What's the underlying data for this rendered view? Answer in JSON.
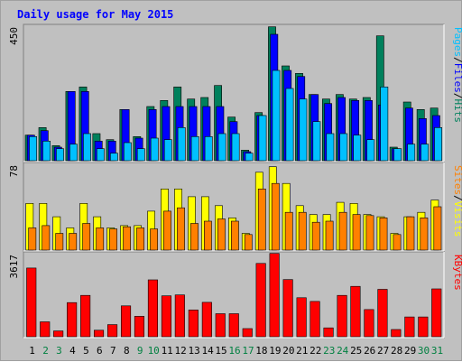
{
  "title": "Daily usage for May 2015",
  "colors": {
    "hits": "#00805c",
    "files": "#0000ff",
    "pages": "#00c0ff",
    "visits": "#ffff00",
    "sites": "#ff8000",
    "kbytes": "#ff0000",
    "weekday_label": "#000000",
    "weekend_label": "#008040"
  },
  "chart_data": [
    {
      "type": "bar",
      "ymax_label": "450",
      "ylim": [
        0,
        450
      ],
      "side_labels": [
        {
          "text": "Pages",
          "color": "#00c0ff"
        },
        {
          "text": "/",
          "color": "#000000"
        },
        {
          "text": "Files",
          "color": "#0000ff"
        },
        {
          "text": "/",
          "color": "#000000"
        },
        {
          "text": "Hits",
          "color": "#00805c"
        }
      ],
      "categories": [
        "1",
        "2",
        "3",
        "4",
        "5",
        "6",
        "7",
        "8",
        "9",
        "10",
        "11",
        "12",
        "13",
        "14",
        "15",
        "16",
        "17",
        "18",
        "19",
        "20",
        "21",
        "22",
        "23",
        "24",
        "25",
        "26",
        "27",
        "28",
        "29",
        "30",
        "31"
      ],
      "series": [
        {
          "name": "Hits",
          "values": [
            85,
            110,
            50,
            230,
            245,
            90,
            70,
            170,
            80,
            180,
            200,
            245,
            205,
            210,
            250,
            145,
            35,
            160,
            445,
            315,
            290,
            220,
            205,
            220,
            205,
            210,
            415,
            45,
            195,
            170,
            175
          ]
        },
        {
          "name": "Files",
          "values": [
            85,
            100,
            45,
            230,
            230,
            65,
            65,
            170,
            75,
            170,
            180,
            180,
            180,
            180,
            180,
            130,
            30,
            150,
            420,
            300,
            280,
            220,
            190,
            210,
            200,
            200,
            185,
            40,
            175,
            140,
            150
          ]
        },
        {
          "name": "Pages",
          "values": [
            80,
            65,
            40,
            55,
            90,
            40,
            25,
            60,
            40,
            75,
            70,
            110,
            80,
            80,
            90,
            90,
            25,
            150,
            300,
            240,
            205,
            130,
            90,
            90,
            85,
            70,
            245,
            40,
            55,
            55,
            110
          ]
        }
      ]
    },
    {
      "type": "bar",
      "ymax_label": "78",
      "ylim": [
        0,
        78
      ],
      "side_labels": [
        {
          "text": "Sites",
          "color": "#ff8000"
        },
        {
          "text": "/",
          "color": "#000000"
        },
        {
          "text": "Visits",
          "color": "#ffff00"
        }
      ],
      "categories": [
        "1",
        "2",
        "3",
        "4",
        "5",
        "6",
        "7",
        "8",
        "9",
        "10",
        "11",
        "12",
        "13",
        "14",
        "15",
        "16",
        "17",
        "18",
        "19",
        "20",
        "21",
        "22",
        "23",
        "24",
        "25",
        "26",
        "27",
        "28",
        "29",
        "30",
        "31"
      ],
      "series": [
        {
          "name": "Visits",
          "values": [
            42,
            42,
            30,
            20,
            42,
            30,
            20,
            22,
            22,
            35,
            55,
            55,
            48,
            48,
            40,
            29,
            15,
            70,
            75,
            60,
            40,
            32,
            32,
            43,
            42,
            32,
            30,
            15,
            30,
            34,
            45
          ]
        },
        {
          "name": "Sites",
          "values": [
            20,
            22,
            15,
            15,
            24,
            20,
            19,
            21,
            20,
            19,
            35,
            38,
            24,
            26,
            28,
            26,
            14,
            55,
            60,
            34,
            34,
            25,
            26,
            34,
            32,
            31,
            29,
            14,
            30,
            29,
            39
          ]
        }
      ]
    },
    {
      "type": "bar",
      "ymax_label": "3617",
      "ylim": [
        0,
        3617
      ],
      "side_labels": [
        {
          "text": "KBytes",
          "color": "#ff0000"
        }
      ],
      "categories": [
        "1",
        "2",
        "3",
        "4",
        "5",
        "6",
        "7",
        "8",
        "9",
        "10",
        "11",
        "12",
        "13",
        "14",
        "15",
        "16",
        "17",
        "18",
        "19",
        "20",
        "21",
        "22",
        "23",
        "24",
        "25",
        "26",
        "27",
        "28",
        "29",
        "30",
        "31"
      ],
      "series": [
        {
          "name": "KBytes",
          "values": [
            2960,
            640,
            250,
            1470,
            1780,
            280,
            520,
            1330,
            880,
            2450,
            1760,
            1800,
            1150,
            1480,
            990,
            990,
            350,
            3160,
            3590,
            2460,
            1680,
            1520,
            380,
            1780,
            2170,
            1170,
            2040,
            310,
            850,
            850,
            2060
          ]
        }
      ],
      "x_labels": [
        {
          "text": "1",
          "weekend": false
        },
        {
          "text": "2",
          "weekend": true
        },
        {
          "text": "3",
          "weekend": true
        },
        {
          "text": "4",
          "weekend": false
        },
        {
          "text": "5",
          "weekend": false
        },
        {
          "text": "6",
          "weekend": false
        },
        {
          "text": "7",
          "weekend": false
        },
        {
          "text": "8",
          "weekend": false
        },
        {
          "text": "9",
          "weekend": true
        },
        {
          "text": "10",
          "weekend": true
        },
        {
          "text": "11",
          "weekend": false
        },
        {
          "text": "12",
          "weekend": false
        },
        {
          "text": "13",
          "weekend": false
        },
        {
          "text": "14",
          "weekend": false
        },
        {
          "text": "15",
          "weekend": false
        },
        {
          "text": "16",
          "weekend": true
        },
        {
          "text": "17",
          "weekend": true
        },
        {
          "text": "18",
          "weekend": false
        },
        {
          "text": "19",
          "weekend": false
        },
        {
          "text": "20",
          "weekend": false
        },
        {
          "text": "21",
          "weekend": false
        },
        {
          "text": "22",
          "weekend": false
        },
        {
          "text": "23",
          "weekend": true
        },
        {
          "text": "24",
          "weekend": true
        },
        {
          "text": "25",
          "weekend": false
        },
        {
          "text": "26",
          "weekend": false
        },
        {
          "text": "27",
          "weekend": false
        },
        {
          "text": "28",
          "weekend": false
        },
        {
          "text": "29",
          "weekend": false
        },
        {
          "text": "30",
          "weekend": true
        },
        {
          "text": "31",
          "weekend": true
        }
      ]
    }
  ]
}
